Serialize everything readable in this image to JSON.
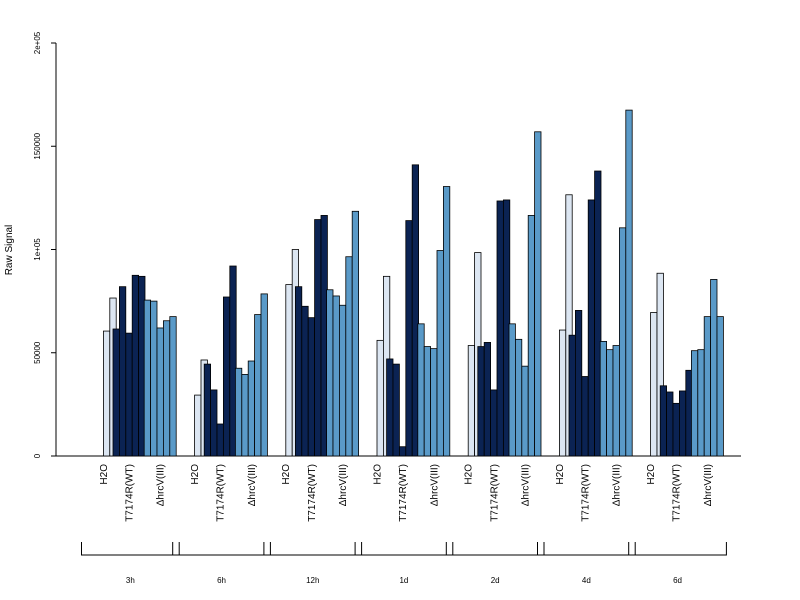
{
  "chart_data": {
    "type": "bar",
    "ylabel": "Raw Signal",
    "ylim": [
      0,
      200000
    ],
    "yticks": [
      0,
      50000,
      100000,
      150000,
      200000
    ],
    "ytick_labels": [
      "0",
      "50000",
      "1e+05",
      "150000",
      "2e+05"
    ],
    "group_labels": [
      "H2O",
      "T7174R(WT)",
      "ΔhrcV(III)"
    ],
    "group_colors": [
      "#dce6f2",
      "#0b2353",
      "#5a9ac8"
    ],
    "timepoints": [
      {
        "label": "3h",
        "groups": [
          {
            "name": "H2O",
            "values": [
              0,
              60500,
              76500
            ]
          },
          {
            "name": "T7174R(WT)",
            "values": [
              61500,
              82000,
              59500,
              87500,
              87000
            ]
          },
          {
            "name": "ΔhrcV(III)",
            "values": [
              75500,
              75000,
              62000,
              65500,
              67500
            ]
          }
        ]
      },
      {
        "label": "6h",
        "groups": [
          {
            "name": "H2O",
            "values": [
              0,
              29500,
              46500
            ]
          },
          {
            "name": "T7174R(WT)",
            "values": [
              44500,
              32000,
              15500,
              77000,
              92000
            ]
          },
          {
            "name": "ΔhrcV(III)",
            "values": [
              42500,
              39500,
              46000,
              68500,
              78500
            ]
          }
        ]
      },
      {
        "label": "12h",
        "groups": [
          {
            "name": "H2O",
            "values": [
              0,
              83000,
              100000
            ]
          },
          {
            "name": "T7174R(WT)",
            "values": [
              82000,
              72500,
              67000,
              114500,
              116500
            ]
          },
          {
            "name": "ΔhrcV(III)",
            "values": [
              80500,
              77500,
              73000,
              96500,
              118500
            ]
          }
        ]
      },
      {
        "label": "1d",
        "groups": [
          {
            "name": "H2O",
            "values": [
              0,
              56000,
              87000
            ]
          },
          {
            "name": "T7174R(WT)",
            "values": [
              47000,
              44500,
              4500,
              114000,
              141000
            ]
          },
          {
            "name": "ΔhrcV(III)",
            "values": [
              64000,
              53000,
              52000,
              99500,
              130500
            ]
          }
        ]
      },
      {
        "label": "2d",
        "groups": [
          {
            "name": "H2O",
            "values": [
              0,
              53500,
              98500
            ]
          },
          {
            "name": "T7174R(WT)",
            "values": [
              53000,
              55000,
              32000,
              123500,
              124000
            ]
          },
          {
            "name": "ΔhrcV(III)",
            "values": [
              64000,
              56500,
              43500,
              116500,
              157000
            ]
          }
        ]
      },
      {
        "label": "4d",
        "groups": [
          {
            "name": "H2O",
            "values": [
              0,
              61000,
              126500
            ]
          },
          {
            "name": "T7174R(WT)",
            "values": [
              58500,
              70500,
              38500,
              124000,
              138000
            ]
          },
          {
            "name": "ΔhrcV(III)",
            "values": [
              55500,
              51500,
              53500,
              110500,
              167500
            ]
          }
        ]
      },
      {
        "label": "6d",
        "groups": [
          {
            "name": "H2O",
            "values": [
              0,
              69500,
              88500
            ]
          },
          {
            "name": "T7174R(WT)",
            "values": [
              34000,
              31000,
              25500,
              31500,
              41500
            ]
          },
          {
            "name": "ΔhrcV(III)",
            "values": [
              51000,
              51500,
              67500,
              85500,
              67500
            ]
          }
        ]
      }
    ]
  }
}
